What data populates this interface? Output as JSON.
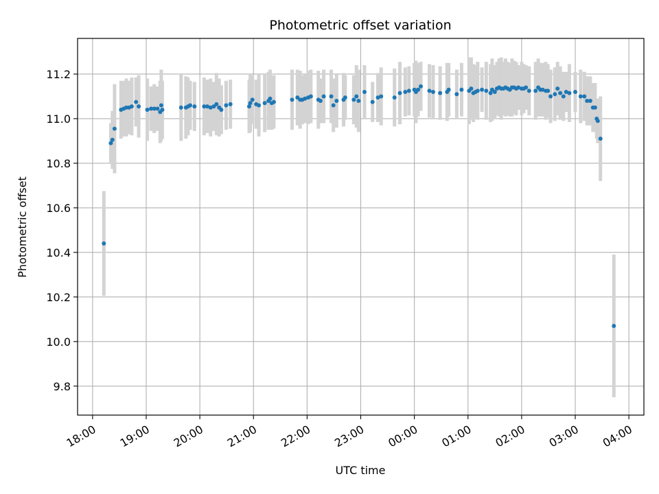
{
  "chart_data": {
    "type": "scatter",
    "title": "Photometric offset variation",
    "xlabel": "UTC time",
    "ylabel": "Photometric offset",
    "x_unit": "hours since 18:00 UTC",
    "xlim": [
      -0.28,
      10.28
    ],
    "ylim": [
      9.67,
      11.36
    ],
    "x_ticks": [
      {
        "value": 0,
        "label": "18:00"
      },
      {
        "value": 1,
        "label": "19:00"
      },
      {
        "value": 2,
        "label": "20:00"
      },
      {
        "value": 3,
        "label": "21:00"
      },
      {
        "value": 4,
        "label": "22:00"
      },
      {
        "value": 5,
        "label": "23:00"
      },
      {
        "value": 6,
        "label": "00:00"
      },
      {
        "value": 7,
        "label": "01:00"
      },
      {
        "value": 8,
        "label": "02:00"
      },
      {
        "value": 9,
        "label": "03:00"
      },
      {
        "value": 10,
        "label": "04:00"
      }
    ],
    "y_ticks": [
      {
        "value": 9.8,
        "label": "9.8"
      },
      {
        "value": 10.0,
        "label": "10.0"
      },
      {
        "value": 10.2,
        "label": "10.2"
      },
      {
        "value": 10.4,
        "label": "10.4"
      },
      {
        "value": 10.6,
        "label": "10.6"
      },
      {
        "value": 10.8,
        "label": "10.8"
      },
      {
        "value": 11.0,
        "label": "11.0"
      },
      {
        "value": 11.2,
        "label": "11.2"
      }
    ],
    "grid": true,
    "colors": {
      "points": "#1f77b4",
      "error_bars": "#d3d3d3",
      "grid": "#b0b0b0"
    },
    "series": [
      {
        "points": [
          [
            0.21,
            10.44,
            0.235
          ],
          [
            0.34,
            10.89,
            0.09
          ],
          [
            0.37,
            10.905,
            0.13
          ],
          [
            0.41,
            10.955,
            0.2
          ],
          [
            0.53,
            11.04,
            0.13
          ],
          [
            0.58,
            11.045,
            0.125
          ],
          [
            0.63,
            11.05,
            0.13
          ],
          [
            0.68,
            11.05,
            0.12
          ],
          [
            0.73,
            11.055,
            0.13
          ],
          [
            0.81,
            11.075,
            0.11
          ],
          [
            0.86,
            11.055,
            0.14
          ],
          [
            1.02,
            11.04,
            0.14
          ],
          [
            1.09,
            11.045,
            0.1
          ],
          [
            1.15,
            11.045,
            0.11
          ],
          [
            1.21,
            11.045,
            0.1
          ],
          [
            1.26,
            11.03,
            0.14
          ],
          [
            1.28,
            11.06,
            0.16
          ],
          [
            1.3,
            11.04,
            0.13
          ],
          [
            1.65,
            11.05,
            0.15
          ],
          [
            1.74,
            11.05,
            0.14
          ],
          [
            1.78,
            11.055,
            0.13
          ],
          [
            1.82,
            11.06,
            0.11
          ],
          [
            1.9,
            11.055,
            0.11
          ],
          [
            2.08,
            11.055,
            0.13
          ],
          [
            2.14,
            11.055,
            0.12
          ],
          [
            2.2,
            11.05,
            0.13
          ],
          [
            2.26,
            11.055,
            0.11
          ],
          [
            2.31,
            11.065,
            0.14
          ],
          [
            2.36,
            11.05,
            0.13
          ],
          [
            2.4,
            11.04,
            0.11
          ],
          [
            2.49,
            11.06,
            0.11
          ],
          [
            2.57,
            11.065,
            0.11
          ],
          [
            2.92,
            11.055,
            0.12
          ],
          [
            2.94,
            11.07,
            0.13
          ],
          [
            2.98,
            11.085,
            0.11
          ],
          [
            3.05,
            11.065,
            0.11
          ],
          [
            3.1,
            11.06,
            0.14
          ],
          [
            3.21,
            11.07,
            0.13
          ],
          [
            3.28,
            11.08,
            0.13
          ],
          [
            3.31,
            11.09,
            0.13
          ],
          [
            3.34,
            11.07,
            0.12
          ],
          [
            3.38,
            11.075,
            0.12
          ],
          [
            3.72,
            11.085,
            0.135
          ],
          [
            3.82,
            11.095,
            0.125
          ],
          [
            3.87,
            11.085,
            0.13
          ],
          [
            3.91,
            11.085,
            0.11
          ],
          [
            3.96,
            11.09,
            0.11
          ],
          [
            4.02,
            11.095,
            0.12
          ],
          [
            4.07,
            11.1,
            0.12
          ],
          [
            4.21,
            11.085,
            0.13
          ],
          [
            4.25,
            11.08,
            0.1
          ],
          [
            4.31,
            11.1,
            0.12
          ],
          [
            4.45,
            11.1,
            0.12
          ],
          [
            4.49,
            11.06,
            0.12
          ],
          [
            4.55,
            11.08,
            0.12
          ],
          [
            4.68,
            11.085,
            0.12
          ],
          [
            4.71,
            11.095,
            0.1
          ],
          [
            4.87,
            11.085,
            0.11
          ],
          [
            4.92,
            11.1,
            0.14
          ],
          [
            4.96,
            11.08,
            0.14
          ],
          [
            5.07,
            11.12,
            0.12
          ],
          [
            5.22,
            11.075,
            0.09
          ],
          [
            5.32,
            11.095,
            0.11
          ],
          [
            5.38,
            11.1,
            0.13
          ],
          [
            5.63,
            11.095,
            0.13
          ],
          [
            5.73,
            11.115,
            0.14
          ],
          [
            5.83,
            11.12,
            0.11
          ],
          [
            5.9,
            11.125,
            0.11
          ],
          [
            6.0,
            11.13,
            0.12
          ],
          [
            6.03,
            11.12,
            0.14
          ],
          [
            6.07,
            11.13,
            0.12
          ],
          [
            6.12,
            11.145,
            0.11
          ],
          [
            6.28,
            11.125,
            0.12
          ],
          [
            6.35,
            11.12,
            0.12
          ],
          [
            6.48,
            11.115,
            0.12
          ],
          [
            6.61,
            11.12,
            0.13
          ],
          [
            6.64,
            11.13,
            0.12
          ],
          [
            6.79,
            11.11,
            0.11
          ],
          [
            6.88,
            11.13,
            0.12
          ],
          [
            7.02,
            11.125,
            0.15
          ],
          [
            7.06,
            11.135,
            0.14
          ],
          [
            7.1,
            11.115,
            0.13
          ],
          [
            7.14,
            11.12,
            0.12
          ],
          [
            7.18,
            11.125,
            0.13
          ],
          [
            7.26,
            11.13,
            0.1
          ],
          [
            7.34,
            11.125,
            0.13
          ],
          [
            7.42,
            11.115,
            0.13
          ],
          [
            7.45,
            11.13,
            0.14
          ],
          [
            7.5,
            11.12,
            0.12
          ],
          [
            7.54,
            11.135,
            0.12
          ],
          [
            7.58,
            11.14,
            0.13
          ],
          [
            7.62,
            11.135,
            0.14
          ],
          [
            7.66,
            11.135,
            0.12
          ],
          [
            7.7,
            11.14,
            0.13
          ],
          [
            7.74,
            11.135,
            0.12
          ],
          [
            7.78,
            11.13,
            0.12
          ],
          [
            7.82,
            11.14,
            0.13
          ],
          [
            7.86,
            11.14,
            0.12
          ],
          [
            7.9,
            11.135,
            0.12
          ],
          [
            7.94,
            11.14,
            0.1
          ],
          [
            8.0,
            11.135,
            0.12
          ],
          [
            8.04,
            11.135,
            0.11
          ],
          [
            8.08,
            11.14,
            0.1
          ],
          [
            8.14,
            11.125,
            0.11
          ],
          [
            8.26,
            11.125,
            0.13
          ],
          [
            8.31,
            11.14,
            0.13
          ],
          [
            8.35,
            11.13,
            0.12
          ],
          [
            8.39,
            11.13,
            0.12
          ],
          [
            8.45,
            11.125,
            0.13
          ],
          [
            8.49,
            11.125,
            0.12
          ],
          [
            8.54,
            11.1,
            0.12
          ],
          [
            8.62,
            11.11,
            0.12
          ],
          [
            8.67,
            11.135,
            0.12
          ],
          [
            8.72,
            11.115,
            0.12
          ],
          [
            8.78,
            11.1,
            0.11
          ],
          [
            8.83,
            11.12,
            0.09
          ],
          [
            8.89,
            11.115,
            0.13
          ],
          [
            9.0,
            11.12,
            0.09
          ],
          [
            9.1,
            11.1,
            0.12
          ],
          [
            9.17,
            11.1,
            0.11
          ],
          [
            9.22,
            11.08,
            0.11
          ],
          [
            9.28,
            11.08,
            0.11
          ],
          [
            9.33,
            11.05,
            0.11
          ],
          [
            9.37,
            11.05,
            0.11
          ],
          [
            9.4,
            11.0,
            0.09
          ],
          [
            9.42,
            10.99,
            0.1
          ],
          [
            9.47,
            10.91,
            0.19
          ],
          [
            9.72,
            10.07,
            0.32
          ]
        ]
      }
    ]
  }
}
